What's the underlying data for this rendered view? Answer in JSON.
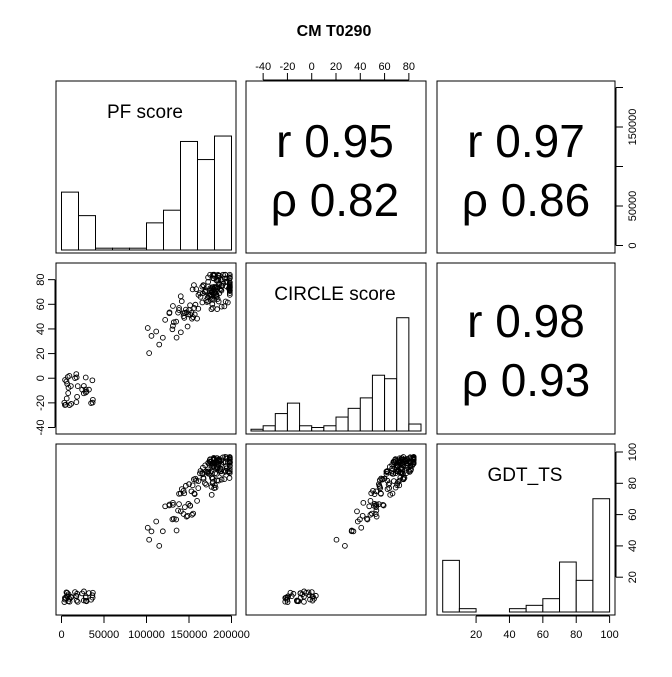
{
  "chart_data": {
    "type": "scatter",
    "title": "CM T0290",
    "variables": [
      {
        "name": "PF score",
        "axis_ticks": [
          0,
          50000,
          100000,
          150000,
          200000
        ],
        "axis_tick_labels": [
          "0",
          "50000",
          "100000",
          "150000",
          ""
        ],
        "axis_tick_labels_right": [
          "0",
          "50000",
          "",
          "150000",
          ""
        ],
        "axis_tick_label_200000": "200000"
      },
      {
        "name": "CIRCLE score",
        "axis_ticks": [
          -40,
          -20,
          0,
          20,
          40,
          60,
          80
        ],
        "axis_tick_labels": [
          "-40",
          "-20",
          "0",
          "20",
          "40",
          "60",
          "80"
        ]
      },
      {
        "name": "GDT_TS",
        "axis_ticks": [
          20,
          40,
          60,
          80,
          100
        ],
        "axis_tick_labels": [
          "20",
          "40",
          "60",
          "80",
          "100"
        ]
      }
    ],
    "correlations": [
      {
        "pair": [
          "PF score",
          "CIRCLE score"
        ],
        "r_label": "r 0.95",
        "rho_label": "ρ 0.82",
        "r": 0.95,
        "rho": 0.82
      },
      {
        "pair": [
          "PF score",
          "GDT_TS"
        ],
        "r_label": "r 0.97",
        "rho_label": "ρ 0.86",
        "r": 0.97,
        "rho": 0.86
      },
      {
        "pair": [
          "CIRCLE score",
          "GDT_TS"
        ],
        "r_label": "r 0.98",
        "rho_label": "ρ 0.93",
        "r": 0.98,
        "rho": 0.93
      }
    ],
    "histograms": {
      "PF score": {
        "range": [
          0,
          200000
        ],
        "bin_width": 20000,
        "counts": [
          32,
          19,
          1,
          1,
          1,
          15,
          22,
          60,
          50,
          63
        ]
      },
      "CIRCLE score": {
        "range": [
          -50,
          90
        ],
        "bin_width": 10,
        "counts": [
          1,
          3,
          10,
          16,
          3,
          2,
          3,
          8,
          13,
          19,
          32,
          30,
          65,
          4
        ]
      },
      "GDT_TS": {
        "range": [
          0,
          100
        ],
        "bin_width": 10,
        "counts": [
          31,
          2,
          0,
          0,
          2,
          4,
          8,
          30,
          19,
          68
        ]
      }
    },
    "grid": false,
    "legend": "none"
  }
}
